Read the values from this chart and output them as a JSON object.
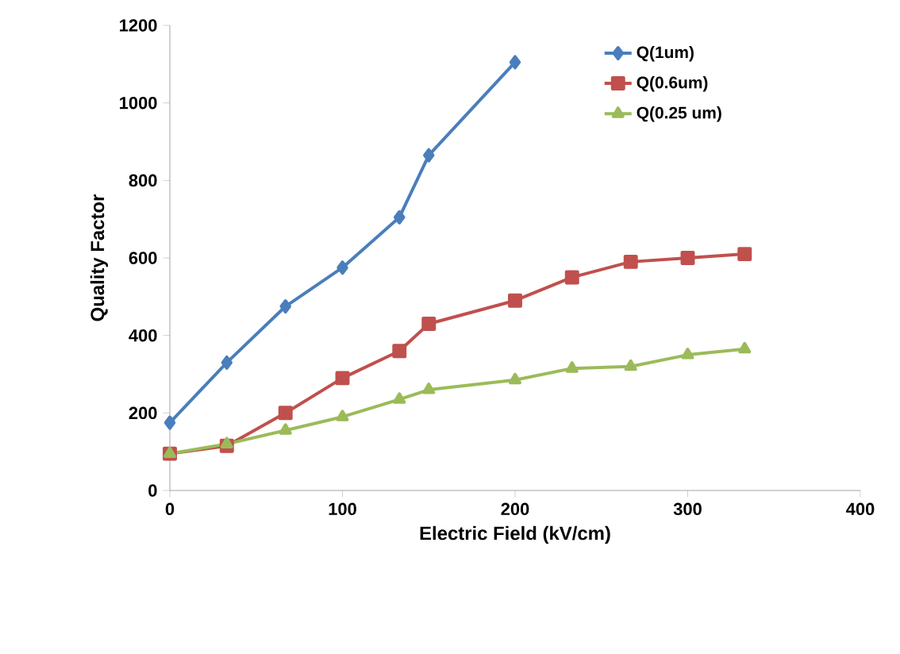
{
  "chart_data": {
    "type": "line",
    "xlabel": "Electric Field (kV/cm)",
    "ylabel": "Quality Factor",
    "xlim": [
      0,
      400
    ],
    "ylim": [
      0,
      1200
    ],
    "xticks": [
      0,
      100,
      200,
      300,
      400
    ],
    "yticks": [
      0,
      200,
      400,
      600,
      800,
      1000,
      1200
    ],
    "legend": "top right",
    "grid": false,
    "series": [
      {
        "name": "Q(1um)",
        "color": "#4a7ebb",
        "marker": "diamond",
        "x": [
          0,
          33,
          67,
          100,
          133,
          150,
          200
        ],
        "values": [
          175,
          330,
          475,
          575,
          705,
          865,
          1105
        ]
      },
      {
        "name": "Q(0.6um)",
        "color": "#c0504d",
        "marker": "square",
        "x": [
          0,
          33,
          67,
          100,
          133,
          150,
          200,
          233,
          267,
          300,
          333
        ],
        "values": [
          95,
          115,
          200,
          290,
          360,
          430,
          490,
          550,
          590,
          600,
          610
        ]
      },
      {
        "name": "Q(0.25 um)",
        "color": "#9bbb59",
        "marker": "triangle",
        "x": [
          0,
          33,
          67,
          100,
          133,
          150,
          200,
          233,
          267,
          300,
          333
        ],
        "values": [
          95,
          120,
          155,
          190,
          235,
          260,
          285,
          315,
          320,
          350,
          365
        ]
      }
    ]
  }
}
